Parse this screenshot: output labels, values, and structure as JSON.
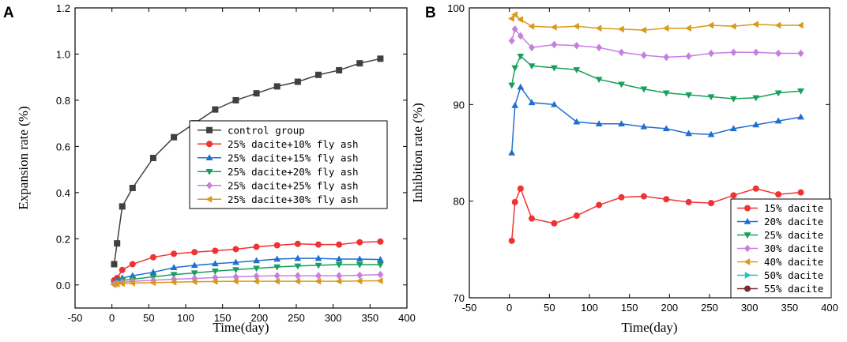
{
  "chart_data": [
    {
      "panel": "A",
      "type": "line",
      "xlabel": "Time(day)",
      "ylabel": "Expansion rate (%)",
      "xlim": [
        -50,
        400
      ],
      "ylim": [
        -0.1,
        1.2
      ],
      "xticks": [
        -50,
        0,
        50,
        100,
        150,
        200,
        250,
        300,
        350,
        400
      ],
      "yticks": [
        0.0,
        0.2,
        0.4,
        0.6,
        0.8,
        1.0,
        1.2
      ],
      "ytick_labels": [
        "0.0",
        "0.2",
        "0.4",
        "0.6",
        "0.8",
        "1.0",
        "1.2"
      ],
      "legend_position": "center-right",
      "series": [
        {
          "name": "control group",
          "color": "#404040",
          "marker": "square",
          "x": [
            3,
            7,
            14,
            28,
            56,
            84,
            112,
            140,
            168,
            196,
            224,
            252,
            280,
            308,
            336,
            364
          ],
          "y": [
            0.09,
            0.18,
            0.34,
            0.42,
            0.55,
            0.64,
            0.7,
            0.76,
            0.8,
            0.83,
            0.86,
            0.88,
            0.91,
            0.93,
            0.96,
            0.98
          ]
        },
        {
          "name": "25% dacite+10% fly ash",
          "color": "#ee3333",
          "marker": "circle",
          "x": [
            3,
            7,
            14,
            28,
            56,
            84,
            112,
            140,
            168,
            196,
            224,
            252,
            280,
            308,
            336,
            364
          ],
          "y": [
            0.02,
            0.03,
            0.065,
            0.09,
            0.12,
            0.135,
            0.142,
            0.148,
            0.155,
            0.165,
            0.172,
            0.178,
            0.175,
            0.175,
            0.185,
            0.188
          ]
        },
        {
          "name": "25% dacite+15% fly ash",
          "color": "#1f6fd0",
          "marker": "triangle-up",
          "x": [
            3,
            7,
            14,
            28,
            56,
            84,
            112,
            140,
            168,
            196,
            224,
            252,
            280,
            308,
            336,
            364
          ],
          "y": [
            0.01,
            0.02,
            0.03,
            0.04,
            0.055,
            0.075,
            0.085,
            0.092,
            0.098,
            0.105,
            0.112,
            0.115,
            0.115,
            0.112,
            0.112,
            0.11
          ]
        },
        {
          "name": "25% dacite+20% fly ash",
          "color": "#17a05a",
          "marker": "triangle-down",
          "x": [
            3,
            7,
            14,
            28,
            56,
            84,
            112,
            140,
            168,
            196,
            224,
            252,
            280,
            308,
            336,
            364
          ],
          "y": [
            0.005,
            0.01,
            0.02,
            0.025,
            0.035,
            0.045,
            0.052,
            0.06,
            0.066,
            0.072,
            0.078,
            0.082,
            0.085,
            0.088,
            0.088,
            0.088
          ]
        },
        {
          "name": "25% dacite+25% fly ash",
          "color": "#c77ee0",
          "marker": "diamond",
          "x": [
            3,
            7,
            14,
            28,
            56,
            84,
            112,
            140,
            168,
            196,
            224,
            252,
            280,
            308,
            336,
            364
          ],
          "y": [
            0.004,
            0.008,
            0.012,
            0.016,
            0.02,
            0.025,
            0.028,
            0.032,
            0.035,
            0.038,
            0.04,
            0.04,
            0.04,
            0.04,
            0.042,
            0.045
          ]
        },
        {
          "name": "25% dacite+30% fly ash",
          "color": "#d99a1a",
          "marker": "triangle-left",
          "x": [
            3,
            7,
            14,
            28,
            56,
            84,
            112,
            140,
            168,
            196,
            224,
            252,
            280,
            308,
            336,
            364
          ],
          "y": [
            0.002,
            0.004,
            0.006,
            0.008,
            0.01,
            0.012,
            0.014,
            0.015,
            0.016,
            0.016,
            0.016,
            0.016,
            0.016,
            0.016,
            0.017,
            0.018
          ]
        }
      ]
    },
    {
      "panel": "B",
      "type": "line",
      "xlabel": "Time(day)",
      "ylabel": "Inhibition rate (%)",
      "xlim": [
        -50,
        400
      ],
      "ylim": [
        70,
        100
      ],
      "xticks": [
        -50,
        0,
        50,
        100,
        150,
        200,
        250,
        300,
        350,
        400
      ],
      "yticks": [
        70,
        80,
        90,
        100
      ],
      "ytick_labels": [
        "70",
        "80",
        "90",
        "100"
      ],
      "legend_position": "bottom-right",
      "series": [
        {
          "name": "15% dacite",
          "color": "#ee3333",
          "marker": "circle",
          "x": [
            3,
            7,
            14,
            28,
            56,
            84,
            112,
            140,
            168,
            196,
            224,
            252,
            280,
            308,
            336,
            364
          ],
          "y": [
            75.9,
            79.9,
            81.3,
            78.2,
            77.7,
            78.5,
            79.6,
            80.4,
            80.5,
            80.2,
            79.9,
            79.8,
            80.6,
            81.3,
            80.7,
            80.9
          ]
        },
        {
          "name": "20% dacite",
          "color": "#1f6fd0",
          "marker": "triangle-up",
          "x": [
            3,
            7,
            14,
            28,
            56,
            84,
            112,
            140,
            168,
            196,
            224,
            252,
            280,
            308,
            336,
            364
          ],
          "y": [
            85.0,
            89.9,
            91.8,
            90.2,
            90.0,
            88.2,
            88.0,
            88.0,
            87.7,
            87.5,
            87.0,
            86.9,
            87.5,
            87.9,
            88.3,
            88.7
          ]
        },
        {
          "name": "25% dacite",
          "color": "#17a05a",
          "marker": "triangle-down",
          "x": [
            3,
            7,
            14,
            28,
            56,
            84,
            112,
            140,
            168,
            196,
            224,
            252,
            280,
            308,
            336,
            364
          ],
          "y": [
            92.0,
            93.8,
            95.0,
            94.0,
            93.8,
            93.6,
            92.6,
            92.1,
            91.6,
            91.2,
            91.0,
            90.8,
            90.6,
            90.7,
            91.2,
            91.4
          ]
        },
        {
          "name": "30% dacite",
          "color": "#c77ee0",
          "marker": "diamond",
          "x": [
            3,
            7,
            14,
            28,
            56,
            84,
            112,
            140,
            168,
            196,
            224,
            252,
            280,
            308,
            336,
            364
          ],
          "y": [
            96.6,
            97.8,
            97.1,
            95.9,
            96.2,
            96.1,
            95.9,
            95.4,
            95.1,
            94.9,
            95.0,
            95.3,
            95.4,
            95.4,
            95.3,
            95.3
          ]
        },
        {
          "name": "40% dacite",
          "color": "#d99a1a",
          "marker": "triangle-left",
          "x": [
            3,
            7,
            14,
            28,
            56,
            84,
            112,
            140,
            168,
            196,
            224,
            252,
            280,
            308,
            336,
            364
          ],
          "y": [
            98.9,
            99.3,
            98.8,
            98.1,
            98.0,
            98.1,
            97.9,
            97.8,
            97.7,
            97.9,
            97.9,
            98.2,
            98.1,
            98.3,
            98.2,
            98.2
          ]
        },
        {
          "name": "50% dacite",
          "color": "#1fc4c4",
          "marker": "triangle-right",
          "x": [],
          "y": []
        },
        {
          "name": "55% dacite",
          "color": "#7a2d2d",
          "marker": "circle",
          "x": [],
          "y": []
        }
      ]
    }
  ],
  "panel_labels": {
    "a": "A",
    "b": "B"
  }
}
